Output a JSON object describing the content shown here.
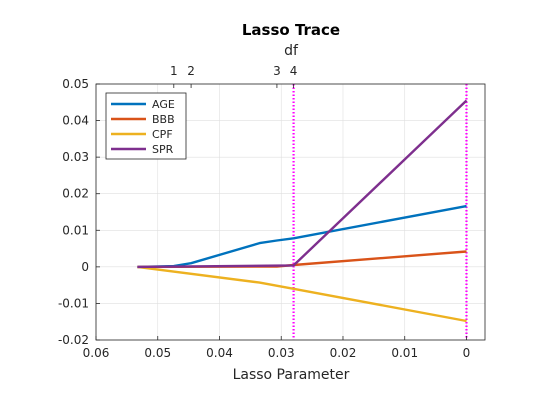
{
  "chart_data": {
    "type": "line",
    "title": "Lasso Trace",
    "top_axis_label": "df",
    "xlabel": "Lasso Parameter",
    "ylabel": "",
    "xlim": [
      0.06,
      -0.003
    ],
    "ylim": [
      -0.02,
      0.05
    ],
    "x_ticks": [
      0.06,
      0.05,
      0.04,
      0.03,
      0.02,
      0.01,
      0
    ],
    "x_tick_labels": [
      "0.06",
      "0.05",
      "0.04",
      "0.03",
      "0.02",
      "0.01",
      "0"
    ],
    "y_ticks": [
      -0.02,
      -0.01,
      0,
      0.01,
      0.02,
      0.03,
      0.04,
      0.05
    ],
    "y_tick_labels": [
      "-0.02",
      "-0.01",
      "0",
      "0.01",
      "0.02",
      "0.03",
      "0.04",
      "0.05"
    ],
    "top_ticks": [
      {
        "x": 0.0474,
        "label": "1"
      },
      {
        "x": 0.0446,
        "label": "2"
      },
      {
        "x": 0.0307,
        "label": "3"
      },
      {
        "x": 0.028,
        "label": "4"
      }
    ],
    "vlines": [
      0.028,
      0.0
    ],
    "vline_color": "#ff00ff",
    "grid": true,
    "legend_position": "top-left",
    "series": [
      {
        "name": "AGE",
        "color": "#0072bd",
        "x": [
          0.0533,
          0.0474,
          0.0446,
          0.0335,
          0.0307,
          0.028,
          0.0
        ],
        "y": [
          0,
          0.0002,
          0.001,
          0.0065,
          0.0072,
          0.0078,
          0.0166
        ]
      },
      {
        "name": "BBB",
        "color": "#d95319",
        "x": [
          0.0533,
          0.0307,
          0.028,
          0.0
        ],
        "y": [
          0,
          0.0001,
          0.0005,
          0.0042
        ]
      },
      {
        "name": "CPF",
        "color": "#edb120",
        "x": [
          0.0533,
          0.0335,
          0.028,
          0.0
        ],
        "y": [
          0,
          -0.0043,
          -0.006,
          -0.0148
        ]
      },
      {
        "name": "SPR",
        "color": "#7e2f8e",
        "x": [
          0.0533,
          0.028,
          0.0
        ],
        "y": [
          0,
          0.0004,
          0.0455
        ]
      }
    ]
  }
}
